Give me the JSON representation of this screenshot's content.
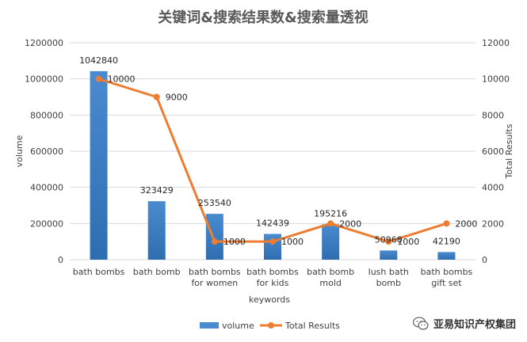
{
  "chart_data": {
    "type": "bar+line",
    "title": "关键词&搜索结果数&搜索量透视",
    "xlabel": "keywords",
    "ylabel_left": "volume",
    "ylabel_right": "Total Results",
    "categories": [
      [
        "bath bombs"
      ],
      [
        "bath bomb"
      ],
      [
        "bath bombs",
        "for women"
      ],
      [
        "bath bombs",
        "for kids"
      ],
      [
        "bath bomb",
        "mold"
      ],
      [
        "lush bath",
        "bomb"
      ],
      [
        "bath bombs",
        "gift set"
      ]
    ],
    "series": [
      {
        "name": "volume",
        "type": "bar",
        "axis": "left",
        "color": "#4a8bd0",
        "values": [
          1042840,
          323429,
          253540,
          142439,
          195216,
          50960,
          42190
        ]
      },
      {
        "name": "Total Results",
        "type": "line",
        "axis": "right",
        "color": "#ed7d31",
        "values": [
          10000,
          9000,
          1000,
          1000,
          2000,
          1000,
          2000
        ]
      }
    ],
    "ylim_left": [
      0,
      1200000
    ],
    "yticks_left": [
      0,
      200000,
      400000,
      600000,
      800000,
      1000000,
      1200000
    ],
    "ylim_right": [
      0,
      12000
    ],
    "yticks_right": [
      0,
      2000,
      4000,
      6000,
      8000,
      10000,
      12000
    ],
    "grid": true,
    "legend": "bottom"
  },
  "watermark": {
    "text": "亚易知识产权集团",
    "icon": "wechat-icon"
  }
}
